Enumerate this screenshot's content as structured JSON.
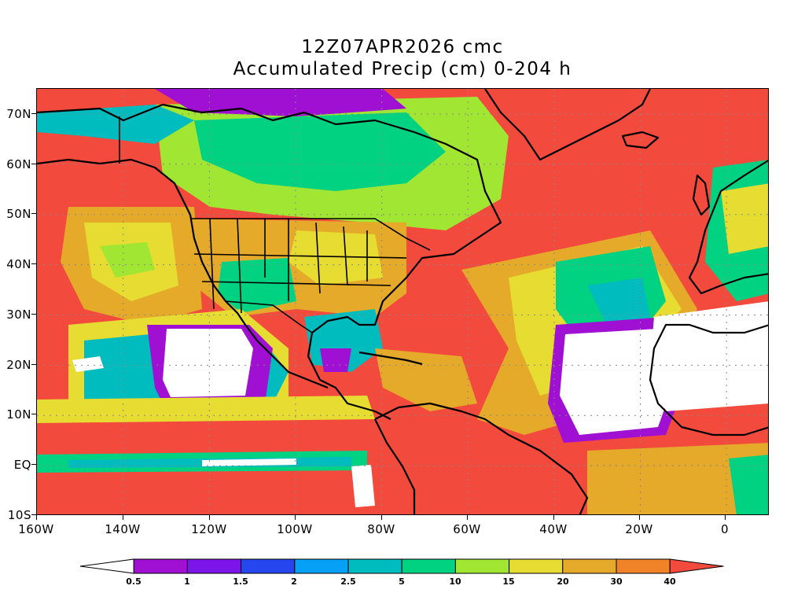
{
  "title": {
    "line1": "12Z07APR2026 cmc",
    "line2": "Accumulated Precip (cm) 0-204 h"
  },
  "axes": {
    "lat_labels": [
      "70N",
      "60N",
      "50N",
      "40N",
      "30N",
      "20N",
      "10N",
      "EQ",
      "10S"
    ],
    "lon_labels": [
      "160W",
      "140W",
      "120W",
      "100W",
      "80W",
      "60W",
      "40W",
      "20W",
      "0"
    ],
    "lat_range": [
      -10,
      75
    ],
    "lon_range": [
      -160,
      10
    ],
    "grid": "dotted"
  },
  "colorbar": {
    "labels": [
      "0.5",
      "1",
      "1.5",
      "2",
      "2.5",
      "5",
      "10",
      "15",
      "20",
      "30",
      "40"
    ],
    "colors": [
      "#ffffff",
      "#a010d2",
      "#7c16e8",
      "#2646f0",
      "#06a0f6",
      "#00bcbe",
      "#00d282",
      "#a0e632",
      "#e6dc32",
      "#e6aa2a",
      "#f08228",
      "#f24a3c"
    ]
  },
  "map_colors": {
    "heavy": "#f24a3c",
    "orange": "#f08228",
    "amber": "#e6aa2a",
    "yellow": "#e6dc32",
    "lime": "#a0e632",
    "green": "#00d282",
    "teal": "#00bcbe",
    "cyan": "#06a0f6",
    "blue": "#2646f0",
    "purple": "#a010d2",
    "dry": "#ffffff"
  }
}
